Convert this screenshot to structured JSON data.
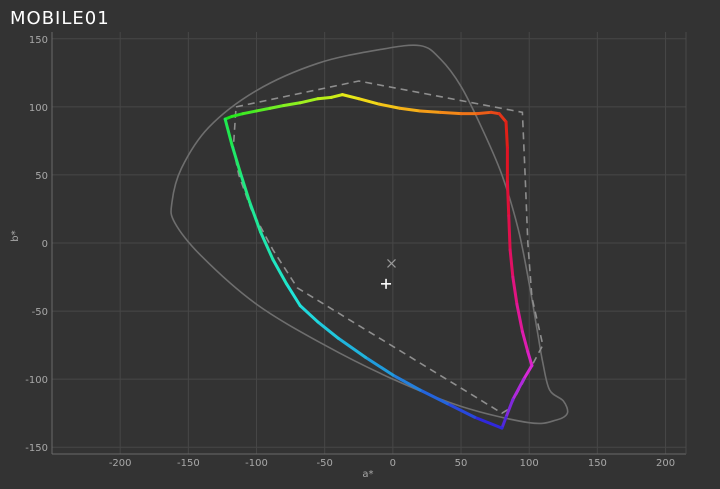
{
  "watermark": {
    "text": "MOBILE01"
  },
  "chart_data": {
    "type": "line",
    "title": "",
    "xlabel": "a*",
    "ylabel": "b*",
    "xlim": [
      -250,
      215
    ],
    "ylim": [
      -155,
      155
    ],
    "xticks": [
      -200,
      -150,
      -100,
      -50,
      0,
      50,
      100,
      150,
      200
    ],
    "yticks": [
      -150,
      -100,
      -50,
      0,
      50,
      100,
      150
    ],
    "grid": true,
    "series": [
      {
        "style": "solid-gray",
        "color": "#6e6e6e",
        "closed": true,
        "x": [
          20,
          -10,
          -55,
          -100,
          -135,
          -155,
          -162,
          -160,
          -140,
          -100,
          -50,
          0,
          50,
          100,
          120,
          128,
          125,
          115,
          110,
          106,
          100,
          92,
          80,
          65,
          50,
          35,
          20
        ],
        "y": [
          145,
          142,
          132,
          112,
          85,
          55,
          30,
          15,
          -10,
          -45,
          -75,
          -100,
          -120,
          -132,
          -130,
          -125,
          -116,
          -108,
          -88,
          -65,
          -30,
          10,
          50,
          85,
          115,
          135,
          145
        ]
      },
      {
        "style": "dashed-gray",
        "color": "#8e8e8e",
        "closed": true,
        "x": [
          -115,
          -25,
          95,
          97,
          99,
          102,
          110,
          85,
          80,
          -70,
          -88,
          -104,
          -113,
          -117,
          -115
        ],
        "y": [
          100,
          119,
          96,
          50,
          0,
          -40,
          -75,
          -122,
          -125,
          -33,
          -5,
          25,
          50,
          70,
          100
        ]
      },
      {
        "style": "gamut-gradient",
        "closed": true,
        "points": [
          {
            "x": -123,
            "y": 91,
            "color": "#18e618"
          },
          {
            "x": -118,
            "y": 93,
            "color": "#2ce820"
          },
          {
            "x": -110,
            "y": 95,
            "color": "#44ea24"
          },
          {
            "x": -100,
            "y": 97,
            "color": "#58ec24"
          },
          {
            "x": -90,
            "y": 99,
            "color": "#70ee24"
          },
          {
            "x": -80,
            "y": 101,
            "color": "#88f020"
          },
          {
            "x": -68,
            "y": 103,
            "color": "#a0f020"
          },
          {
            "x": -55,
            "y": 106,
            "color": "#b8ee18"
          },
          {
            "x": -45,
            "y": 107,
            "color": "#ccec18"
          },
          {
            "x": -37,
            "y": 109,
            "color": "#e6e818"
          },
          {
            "x": -25,
            "y": 106,
            "color": "#f0d818"
          },
          {
            "x": -10,
            "y": 102,
            "color": "#f4c418"
          },
          {
            "x": 5,
            "y": 99,
            "color": "#f4b018"
          },
          {
            "x": 20,
            "y": 97,
            "color": "#f49c18"
          },
          {
            "x": 35,
            "y": 96,
            "color": "#f48818"
          },
          {
            "x": 50,
            "y": 95,
            "color": "#f07418"
          },
          {
            "x": 62,
            "y": 95,
            "color": "#ec5e18"
          },
          {
            "x": 72,
            "y": 96,
            "color": "#e84818"
          },
          {
            "x": 78,
            "y": 95,
            "color": "#e43418"
          },
          {
            "x": 83,
            "y": 89,
            "color": "#e02018"
          },
          {
            "x": 84,
            "y": 70,
            "color": "#e01424"
          },
          {
            "x": 84,
            "y": 45,
            "color": "#e01038"
          },
          {
            "x": 85,
            "y": 20,
            "color": "#e0104c"
          },
          {
            "x": 86,
            "y": -5,
            "color": "#e01064"
          },
          {
            "x": 88,
            "y": -25,
            "color": "#e01480"
          },
          {
            "x": 91,
            "y": -45,
            "color": "#e01898"
          },
          {
            "x": 95,
            "y": -65,
            "color": "#de1cb0"
          },
          {
            "x": 99,
            "y": -80,
            "color": "#dc20c4"
          },
          {
            "x": 102,
            "y": -90,
            "color": "#d828d8"
          },
          {
            "x": 96,
            "y": -100,
            "color": "#b028dc"
          },
          {
            "x": 88,
            "y": -115,
            "color": "#8028dc"
          },
          {
            "x": 83,
            "y": -128,
            "color": "#5028dc"
          },
          {
            "x": 80,
            "y": -136,
            "color": "#3028dc"
          },
          {
            "x": 60,
            "y": -128,
            "color": "#2848dc"
          },
          {
            "x": 40,
            "y": -118,
            "color": "#2464dc"
          },
          {
            "x": 20,
            "y": -108,
            "color": "#2480dc"
          },
          {
            "x": 0,
            "y": -97,
            "color": "#209cdc"
          },
          {
            "x": -20,
            "y": -84,
            "color": "#20b4dc"
          },
          {
            "x": -40,
            "y": -70,
            "color": "#20c8dc"
          },
          {
            "x": -55,
            "y": -58,
            "color": "#20d8dc"
          },
          {
            "x": -68,
            "y": -46,
            "color": "#20e4d8"
          },
          {
            "x": -78,
            "y": -30,
            "color": "#20e6c4"
          },
          {
            "x": -88,
            "y": -12,
            "color": "#20e6b0"
          },
          {
            "x": -97,
            "y": 8,
            "color": "#20e898"
          },
          {
            "x": -105,
            "y": 30,
            "color": "#20e880"
          },
          {
            "x": -112,
            "y": 52,
            "color": "#20e868"
          },
          {
            "x": -118,
            "y": 72,
            "color": "#20e850"
          },
          {
            "x": -123,
            "y": 91,
            "color": "#18e618"
          }
        ]
      }
    ],
    "markers": [
      {
        "symbol": "x",
        "x": -1,
        "y": -15,
        "color": "#9a9a9a"
      },
      {
        "symbol": "+",
        "x": -5,
        "y": -30,
        "color": "#ffffff"
      }
    ]
  }
}
